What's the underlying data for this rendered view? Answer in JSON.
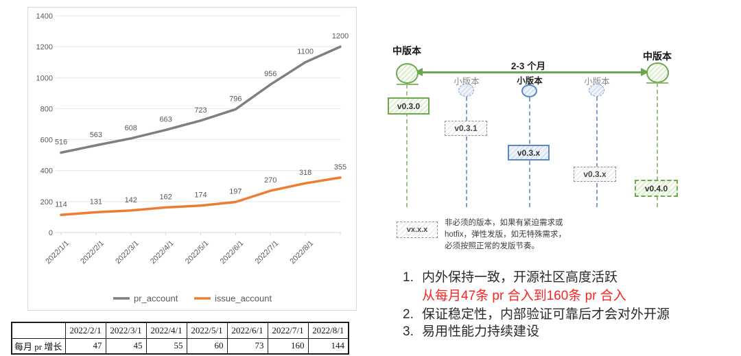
{
  "chart_data": [
    {
      "type": "line",
      "x": [
        "2022/1/1",
        "2022/2/1",
        "2022/3/1",
        "2022/4/1",
        "2022/5/1",
        "2022/6/1",
        "2022/7/1",
        "2022/8/1",
        ""
      ],
      "series": [
        {
          "name": "pr_account",
          "color": "#7f7f7f",
          "values": [
            516,
            563,
            608,
            663,
            723,
            796,
            956,
            1100,
            1200
          ]
        },
        {
          "name": "issue_account",
          "color": "#ed7d31",
          "values": [
            114,
            131,
            142,
            162,
            174,
            197,
            270,
            318,
            355
          ]
        }
      ],
      "ylim": [
        0,
        1400
      ],
      "yticks": [
        0,
        200,
        400,
        600,
        800,
        1000,
        1200,
        1400
      ],
      "grid": true,
      "data_labels": true,
      "legend_position": "bottom"
    },
    {
      "type": "table",
      "columns": [
        "",
        "2022/2/1",
        "2022/3/1",
        "2022/4/1",
        "2022/5/1",
        "2022/6/1",
        "2022/7/1",
        "2022/8/1"
      ],
      "rows": [
        [
          "每月 pr 增长",
          "47",
          "45",
          "55",
          "60",
          "73",
          "160",
          "144"
        ]
      ]
    }
  ],
  "diagram": {
    "major_release_left": "中版本",
    "major_release_right": "中版本",
    "interval_label": "2-3 个月",
    "minor_labels": [
      "小版本",
      "小版本",
      "小版本"
    ],
    "versions": {
      "v030": "v0.3.0",
      "v031": "v0.3.1",
      "v03x_planned": "v0.3.x",
      "v03x_optional": "v0.3.x",
      "v040": "v0.4.0",
      "legend": "vx.x.x"
    },
    "note_lines": [
      "非必须的版本，如果有紧迫需求或",
      "hotfix，弹性发版，如无特殊需求，",
      "必须按照正常的发版节奏。"
    ],
    "colors": {
      "green": "#6fa84f",
      "blue": "#5b87c7",
      "gray": "#8f8f8f"
    }
  },
  "takeaways": {
    "items": [
      {
        "num": "1.",
        "text": "内外保持一致，开源社区高度活跃"
      },
      {
        "num": "",
        "text": "从每月47条 pr 合入到160条 pr 合入"
      },
      {
        "num": "2.",
        "text": "保证稳定性，内部验证可靠后才会对外开源"
      },
      {
        "num": "3.",
        "text": "易用性能力持续建设"
      }
    ],
    "highlight_color": "#ff2222"
  }
}
